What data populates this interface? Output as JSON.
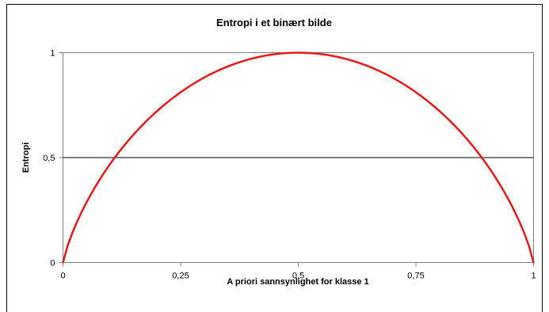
{
  "chart_data": {
    "type": "line",
    "title": "Entropi i et binært bilde",
    "xlabel": "A priori sannsynlighet for klasse 1",
    "ylabel": "Entropi",
    "xlim": [
      0,
      1
    ],
    "ylim": [
      0,
      1
    ],
    "x_ticks": [
      0,
      0.25,
      0.5,
      0.75,
      1
    ],
    "x_tick_labels": [
      "0",
      "0,25",
      "0,5",
      "0,75",
      "1"
    ],
    "y_ticks": [
      0,
      0.5,
      1
    ],
    "y_tick_labels": [
      "0",
      "0,5",
      "1"
    ],
    "grid": "horizontal",
    "legend": "none",
    "series": [
      {
        "color": "#e31b1b",
        "x": [
          0,
          0.01,
          0.02,
          0.03,
          0.04,
          0.05,
          0.06,
          0.07,
          0.08,
          0.09,
          0.1,
          0.11,
          0.12,
          0.13,
          0.14,
          0.15,
          0.16,
          0.17,
          0.18,
          0.19,
          0.2,
          0.21,
          0.22,
          0.23,
          0.24,
          0.25,
          0.26,
          0.27,
          0.28,
          0.29,
          0.3,
          0.31,
          0.32,
          0.33,
          0.34,
          0.35,
          0.36,
          0.37,
          0.38,
          0.39,
          0.4,
          0.41,
          0.42,
          0.43,
          0.44,
          0.45,
          0.46,
          0.47,
          0.48,
          0.49,
          0.5,
          0.51,
          0.52,
          0.53,
          0.54,
          0.55,
          0.56,
          0.57,
          0.58,
          0.59,
          0.6,
          0.61,
          0.62,
          0.63,
          0.64,
          0.65,
          0.66,
          0.67,
          0.68,
          0.69,
          0.7,
          0.71,
          0.72,
          0.73,
          0.74,
          0.75,
          0.76,
          0.77,
          0.78,
          0.79,
          0.8,
          0.81,
          0.82,
          0.83,
          0.84,
          0.85,
          0.86,
          0.87,
          0.88,
          0.89,
          0.9,
          0.91,
          0.92,
          0.93,
          0.94,
          0.95,
          0.96,
          0.97,
          0.98,
          0.99,
          1
        ],
        "y": [
          0,
          0.0808,
          0.1414,
          0.1944,
          0.2423,
          0.2864,
          0.3274,
          0.3659,
          0.4022,
          0.4365,
          0.469,
          0.4999,
          0.5294,
          0.5574,
          0.5842,
          0.6098,
          0.6343,
          0.6577,
          0.6801,
          0.7015,
          0.7219,
          0.7415,
          0.7602,
          0.778,
          0.795,
          0.8113,
          0.8267,
          0.8415,
          0.8555,
          0.8687,
          0.8813,
          0.8932,
          0.9044,
          0.9149,
          0.9248,
          0.9341,
          0.9427,
          0.9507,
          0.958,
          0.9648,
          0.971,
          0.9765,
          0.9815,
          0.9858,
          0.9896,
          0.9928,
          0.9954,
          0.9974,
          0.9988,
          0.9997,
          1,
          0.9997,
          0.9988,
          0.9974,
          0.9954,
          0.9928,
          0.9896,
          0.9858,
          0.9815,
          0.9765,
          0.971,
          0.9648,
          0.958,
          0.9507,
          0.9427,
          0.9341,
          0.9248,
          0.9149,
          0.9044,
          0.8932,
          0.8813,
          0.8687,
          0.8555,
          0.8415,
          0.8267,
          0.8113,
          0.795,
          0.778,
          0.7602,
          0.7415,
          0.7219,
          0.7015,
          0.6801,
          0.6577,
          0.6343,
          0.6098,
          0.5842,
          0.5574,
          0.5294,
          0.4999,
          0.469,
          0.4365,
          0.4022,
          0.3659,
          0.3274,
          0.2864,
          0.2423,
          0.1944,
          0.1414,
          0.0808,
          0
        ]
      }
    ]
  }
}
